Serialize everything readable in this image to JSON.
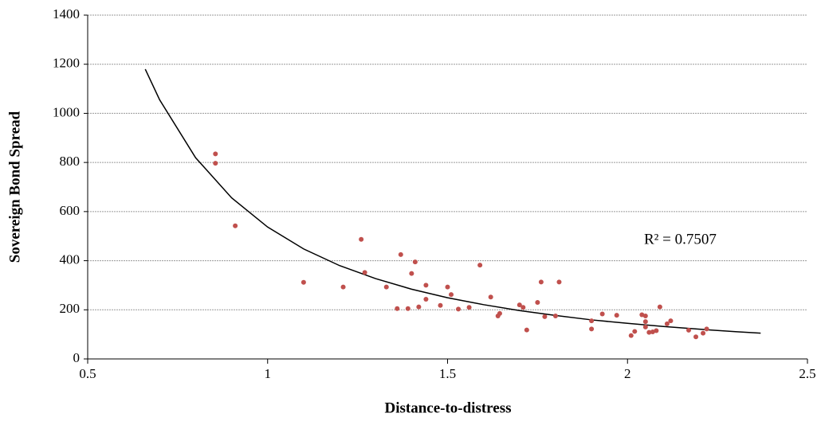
{
  "chart_data": {
    "type": "scatter",
    "x_label": "Distance-to-distress",
    "y_label": "Sovereign Bond Spread",
    "annotation": "R² = 0.7507",
    "xlim": [
      0.5,
      2.5
    ],
    "xticks": [
      0.5,
      1,
      1.5,
      2,
      2.5
    ],
    "ylim": [
      0,
      1400
    ],
    "yticks": [
      0,
      200,
      400,
      600,
      800,
      1000,
      1200,
      1400
    ],
    "grid": true,
    "series": [
      {
        "color": "#c0504d",
        "x": [
          0.855,
          0.855,
          0.91,
          1.1,
          1.21,
          1.26,
          1.27,
          1.33,
          1.36,
          1.37,
          1.39,
          1.4,
          1.41,
          1.42,
          1.44,
          1.44,
          1.48,
          1.5,
          1.51,
          1.53,
          1.56,
          1.59,
          1.62,
          1.64,
          1.645,
          1.7,
          1.71,
          1.72,
          1.75,
          1.76,
          1.77,
          1.8,
          1.81,
          1.9,
          1.9,
          1.93,
          1.97,
          2.01,
          2.02,
          2.04,
          2.05,
          2.05,
          2.05,
          2.06,
          2.07,
          2.08,
          2.09,
          2.11,
          2.12,
          2.17,
          2.19,
          2.21,
          2.22
        ],
        "values": [
          835,
          797,
          542,
          312,
          293,
          487,
          352,
          293,
          205,
          425,
          205,
          348,
          395,
          212,
          300,
          243,
          218,
          293,
          262,
          203,
          210,
          382,
          252,
          175,
          185,
          220,
          210,
          118,
          230,
          313,
          172,
          175,
          313,
          155,
          122,
          183,
          178,
          95,
          112,
          180,
          175,
          152,
          130,
          108,
          110,
          115,
          212,
          143,
          155,
          117,
          90,
          105,
          122
        ]
      }
    ],
    "trendline": {
      "color": "#000000",
      "x": [
        0.66,
        0.7,
        0.8,
        0.9,
        1.0,
        1.1,
        1.2,
        1.3,
        1.4,
        1.5,
        1.6,
        1.7,
        1.8,
        1.9,
        2.0,
        2.1,
        2.2,
        2.3,
        2.37
      ],
      "values": [
        1180,
        1055,
        819,
        656,
        537,
        448,
        380,
        327,
        284,
        249,
        221,
        197,
        177,
        159,
        145,
        132,
        121,
        111,
        105
      ]
    }
  }
}
